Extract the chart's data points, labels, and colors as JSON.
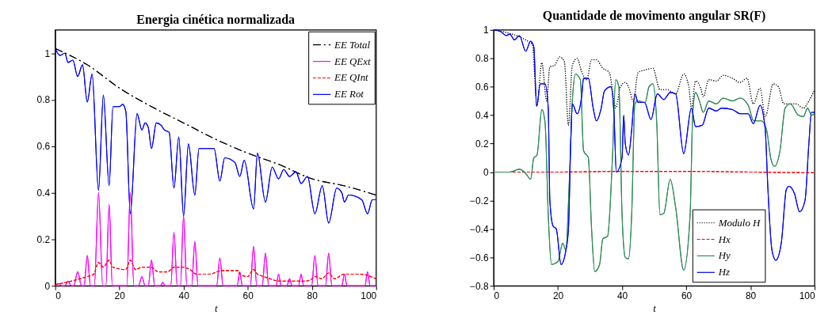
{
  "chart_data": [
    {
      "type": "line",
      "title": "Energia cinética normalizada",
      "xlabel": "t",
      "xlim": [
        0,
        100
      ],
      "xticks": [
        0,
        20,
        40,
        60,
        80,
        100
      ],
      "ylim": [
        0,
        1.1
      ],
      "yticks": [
        0,
        0.2,
        0.4,
        0.6,
        0.8,
        1
      ],
      "legend": "top right",
      "series": [
        {
          "name": "EE Total",
          "color": "#000000",
          "line_style": "dashdot",
          "x": [
            0,
            10,
            20,
            30,
            40,
            50,
            60,
            70,
            80,
            90,
            100
          ],
          "values": [
            1.02,
            0.95,
            0.85,
            0.77,
            0.7,
            0.63,
            0.57,
            0.52,
            0.46,
            0.43,
            0.39
          ]
        },
        {
          "name": "EE QExt",
          "color": "#ff00ff",
          "line_style": "solid",
          "x": [
            0,
            1,
            2,
            3,
            4,
            5,
            5.8,
            7,
            8.2,
            9,
            10,
            11,
            12.2,
            13.5,
            14.8,
            15.8,
            16.8,
            17.8,
            19,
            22.3,
            23.4,
            24.5,
            26,
            27,
            28,
            29,
            30,
            31,
            32.8,
            33.5,
            34.2,
            36,
            37,
            38,
            39,
            40,
            41,
            42.5,
            43.5,
            44.5,
            50.3,
            51.3,
            52.3,
            56.7,
            57.5,
            58.3,
            60.8,
            61.8,
            62.8,
            64.5,
            65.5,
            66.5,
            68.8,
            69.6,
            70.4,
            72.2,
            73,
            73.8,
            75.8,
            76.6,
            77.4,
            79.9,
            80.9,
            81.9,
            84.2,
            85.2,
            86.2,
            89.3,
            90.1,
            90.9,
            96.5,
            97.3,
            98.1,
            100
          ],
          "values": [
            0,
            0.01,
            0,
            0,
            0.02,
            0,
            0,
            0.06,
            0,
            0,
            0.13,
            0,
            0,
            0.4,
            0,
            0,
            0.35,
            0,
            0,
            0,
            0.4,
            0,
            0,
            0.04,
            0,
            0,
            0.11,
            0,
            0,
            0.015,
            0,
            0,
            0.23,
            0,
            0,
            0.3,
            0,
            0,
            0.19,
            0,
            0,
            0.12,
            0,
            0,
            0.06,
            0,
            0,
            0.17,
            0,
            0,
            0.14,
            0,
            0,
            0.05,
            0,
            0,
            0.03,
            0,
            0,
            0.05,
            0,
            0,
            0.13,
            0,
            0,
            0.14,
            0,
            0,
            0.05,
            0,
            0,
            0.06,
            0,
            0
          ]
        },
        {
          "name": "EE QInt",
          "color": "#ff0000",
          "line_style": "dashed",
          "x": [
            0,
            5,
            10,
            12,
            13.5,
            15,
            16.8,
            18,
            22,
            23.4,
            25,
            27,
            30,
            32,
            35,
            37,
            40,
            42,
            44,
            48,
            52,
            57,
            57.5,
            60,
            61.8,
            63,
            65,
            67,
            70,
            75,
            78,
            80,
            81,
            83,
            85.2,
            87,
            90,
            95,
            100
          ],
          "values": [
            0.005,
            0.02,
            0.04,
            0.05,
            0.1,
            0.08,
            0.11,
            0.08,
            0.07,
            0.11,
            0.07,
            0.08,
            0.08,
            0.06,
            0.06,
            0.08,
            0.08,
            0.07,
            0.05,
            0.05,
            0.065,
            0.065,
            0.05,
            0.04,
            0.07,
            0.05,
            0.04,
            0.03,
            0.02,
            0.02,
            0.02,
            0.03,
            0.04,
            0.03,
            0.055,
            0.03,
            0.05,
            0.05,
            0.03
          ]
        },
        {
          "name": "EE Rot",
          "color": "#0000ff",
          "line_style": "solid",
          "x": [
            0,
            1.5,
            3,
            4,
            5.5,
            7,
            8.5,
            10,
            11.5,
            13.5,
            15,
            16.8,
            18,
            20,
            21,
            22,
            23.4,
            25.5,
            27,
            28,
            29,
            30,
            31.5,
            33,
            34,
            35.5,
            37,
            38.5,
            40,
            41.5,
            43.5,
            44.8,
            49.5,
            51.3,
            52.8,
            56,
            57.5,
            58.9,
            61.8,
            63,
            65.5,
            67.6,
            69.6,
            71.2,
            73,
            75,
            76.6,
            78.6,
            80.9,
            83.2,
            85.2,
            87.7,
            89.3,
            90.1,
            91.4,
            95.5,
            97.3,
            98.8,
            100
          ],
          "values": [
            1.02,
            0.99,
            1.0,
            0.96,
            0.97,
            0.9,
            0.95,
            0.79,
            0.91,
            0.41,
            0.82,
            0.43,
            0.77,
            0.77,
            0.78,
            0.75,
            0.31,
            0.74,
            0.67,
            0.7,
            0.68,
            0.59,
            0.7,
            0.69,
            0.67,
            0.66,
            0.42,
            0.64,
            0.3,
            0.61,
            0.39,
            0.59,
            0.59,
            0.45,
            0.55,
            0.53,
            0.47,
            0.54,
            0.33,
            0.57,
            0.36,
            0.51,
            0.46,
            0.5,
            0.47,
            0.49,
            0.44,
            0.47,
            0.31,
            0.43,
            0.27,
            0.42,
            0.4,
            0.36,
            0.39,
            0.37,
            0.31,
            0.37,
            0.37
          ]
        }
      ]
    },
    {
      "type": "line",
      "title": "Quantidade de movimento angular SR(F)",
      "xlabel": "t",
      "xlim": [
        0,
        100
      ],
      "xticks": [
        0,
        20,
        40,
        60,
        80,
        100
      ],
      "ylim": [
        -0.8,
        1
      ],
      "yticks": [
        -0.8,
        -0.6,
        -0.4,
        -0.2,
        0,
        0.2,
        0.4,
        0.6,
        0.8,
        1
      ],
      "legend": "bottom right",
      "series": [
        {
          "name": "Modulo H",
          "color": "#000000",
          "line_style": "dotted",
          "x": [
            0,
            12,
            13.5,
            15,
            16.5,
            17.5,
            19,
            20.5,
            22,
            23.3,
            24.5,
            26,
            27.5,
            29,
            30.5,
            32,
            34,
            36,
            37.5,
            38,
            39.5,
            41,
            42,
            43.5,
            45,
            47.5,
            49.6,
            51.8,
            54,
            56.7,
            59.2,
            60.8,
            61.6,
            62.9,
            64.5,
            65.3,
            67,
            69.4,
            71.5,
            74.4,
            76.8,
            78.9,
            80.9,
            83,
            84.6,
            87.1,
            88.7,
            90.4,
            94.1,
            96.5,
            98.2,
            100
          ],
          "values": [
            1.0,
            0.9,
            0.47,
            0.77,
            0.5,
            0.74,
            0.75,
            0.81,
            0.78,
            0.33,
            0.75,
            0.8,
            0.7,
            0.65,
            0.79,
            0.79,
            0.73,
            0.7,
            0.5,
            0.45,
            0.6,
            0.63,
            0.6,
            0.5,
            0.7,
            0.72,
            0.73,
            0.58,
            0.58,
            0.55,
            0.69,
            0.6,
            0.45,
            0.64,
            0.59,
            0.53,
            0.65,
            0.64,
            0.68,
            0.66,
            0.63,
            0.66,
            0.48,
            0.59,
            0.39,
            0.62,
            0.6,
            0.48,
            0.48,
            0.45,
            0.5,
            0.58
          ]
        },
        {
          "name": "Hx",
          "color": "#ff0000",
          "line_style": "dashed",
          "x": [
            0,
            20,
            40,
            60,
            80,
            100
          ],
          "values": [
            0,
            0,
            0.005,
            0.005,
            0,
            -0.005
          ]
        },
        {
          "name": "Hy",
          "color": "#2e8b57",
          "line_style": "solid",
          "x": [
            0,
            5,
            8,
            10,
            11.5,
            12.5,
            13.5,
            15,
            16,
            17,
            18,
            20,
            21.5,
            22.5,
            23.5,
            24.5,
            25.5,
            27,
            28,
            29.5,
            30.5,
            31.5,
            33,
            34,
            35.5,
            37,
            38,
            39,
            40,
            41,
            42,
            43,
            44,
            45,
            47.2,
            48.4,
            49.6,
            50.8,
            51.8,
            53,
            55,
            56.7,
            59.2,
            61.2,
            62,
            62.9,
            64.1,
            65.3,
            67,
            69.4,
            71.5,
            74.4,
            76.8,
            79.3,
            81,
            83.4,
            85,
            86.3,
            87.5,
            89.2,
            90.8,
            92.4,
            94.9,
            96.5,
            97.8,
            99,
            100
          ],
          "values": [
            0,
            0,
            0.02,
            -0.01,
            -0.05,
            0.1,
            0.12,
            0.44,
            0.35,
            -0.3,
            -0.65,
            -0.63,
            -0.5,
            -0.55,
            -0.1,
            0.5,
            0.69,
            0.65,
            0.15,
            0.1,
            -0.4,
            -0.7,
            -0.65,
            -0.47,
            -0.45,
            0.1,
            0.65,
            0.6,
            -0.3,
            -0.6,
            -0.61,
            -0.3,
            0.48,
            0.5,
            0.49,
            0.6,
            0.62,
            0.35,
            -0.3,
            -0.29,
            -0.05,
            -0.25,
            -0.69,
            -0.3,
            0.4,
            0.56,
            0.5,
            0.42,
            0.5,
            0.48,
            0.52,
            0.5,
            0.52,
            0.47,
            0.36,
            0.36,
            0.3,
            0.1,
            0.04,
            0.15,
            0.45,
            0.48,
            0.4,
            0.39,
            0.45,
            0.4,
            0.41
          ]
        },
        {
          "name": "Hz",
          "color": "#0000ff",
          "line_style": "solid",
          "x": [
            0,
            2,
            4,
            5,
            6.5,
            8,
            10,
            11.5,
            12.5,
            13.4,
            14.5,
            16,
            17,
            17.5,
            18.5,
            19.5,
            21,
            22.5,
            23.3,
            24,
            24.5,
            26,
            27.5,
            28,
            29.5,
            31,
            32,
            33.5,
            34.5,
            36.5,
            37.5,
            38.2,
            40,
            40.5,
            41,
            42,
            43,
            44,
            45,
            47,
            49,
            51,
            53,
            55,
            56.7,
            59.2,
            61.6,
            62.9,
            65,
            67,
            69.4,
            71,
            74.4,
            76.8,
            79.3,
            80.9,
            83,
            84.6,
            85.4,
            86.7,
            87.9,
            89.6,
            91.2,
            92,
            93.7,
            95.3,
            97,
            98.2,
            99,
            100
          ],
          "values": [
            1.0,
            0.99,
            0.96,
            0.97,
            0.93,
            0.96,
            0.85,
            0.92,
            0.88,
            0.46,
            0.62,
            0.62,
            0.45,
            -0.2,
            -0.38,
            -0.4,
            -0.65,
            -0.55,
            -0.4,
            0.2,
            0.48,
            0.41,
            0.55,
            0.66,
            0.66,
            0.45,
            0.36,
            0.45,
            0.57,
            0.6,
            0.4,
            0.0,
            0.1,
            0.4,
            0.2,
            0.12,
            0.3,
            0.55,
            0.49,
            0.49,
            0.37,
            0.55,
            0.51,
            0.56,
            0.55,
            0.13,
            0.45,
            0.32,
            0.33,
            0.45,
            0.43,
            0.45,
            0.44,
            0.41,
            0.41,
            0.34,
            0.47,
            0.3,
            -0.1,
            -0.55,
            -0.62,
            -0.5,
            -0.12,
            -0.1,
            -0.15,
            -0.28,
            -0.2,
            0.2,
            0.42,
            0.42
          ]
        }
      ]
    }
  ]
}
